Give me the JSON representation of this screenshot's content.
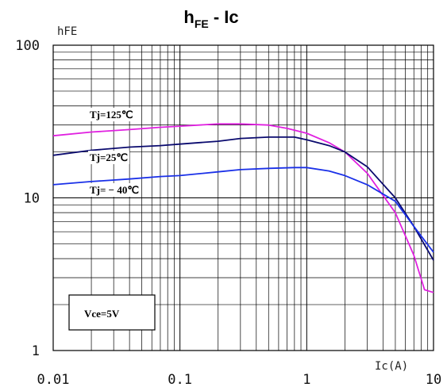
{
  "chart_data": {
    "type": "line",
    "title_main": "h",
    "title_sub": "FE",
    "title_rest": " - Ic",
    "ylabel": "hFE",
    "xlabel": "Ic(A)",
    "x_scale": "log",
    "y_scale": "log",
    "xlim": [
      0.01,
      10
    ],
    "ylim": [
      1,
      100
    ],
    "x_ticks": [
      {
        "value": 0.01,
        "label": "0.01"
      },
      {
        "value": 0.1,
        "label": "0.1"
      },
      {
        "value": 1,
        "label": "1"
      },
      {
        "value": 10,
        "label": "10"
      }
    ],
    "y_ticks": [
      {
        "value": 1,
        "label": "1"
      },
      {
        "value": 10,
        "label": "10"
      },
      {
        "value": 100,
        "label": "100"
      }
    ],
    "grid": true,
    "series": [
      {
        "name": "Tj=125℃",
        "color": "#e020e0",
        "points": [
          [
            0.01,
            25.5
          ],
          [
            0.02,
            27
          ],
          [
            0.04,
            28
          ],
          [
            0.07,
            29
          ],
          [
            0.1,
            29.5
          ],
          [
            0.2,
            30.5
          ],
          [
            0.3,
            30.5
          ],
          [
            0.5,
            30
          ],
          [
            0.7,
            28.5
          ],
          [
            1,
            26.5
          ],
          [
            1.5,
            23
          ],
          [
            2,
            20
          ],
          [
            3,
            14.5
          ],
          [
            5,
            8
          ],
          [
            7,
            4.2
          ],
          [
            8.5,
            2.5
          ],
          [
            10,
            2.4
          ]
        ]
      },
      {
        "name": "Tj=25℃",
        "color": "#0a0a6e",
        "points": [
          [
            0.01,
            19
          ],
          [
            0.02,
            20.5
          ],
          [
            0.04,
            21.5
          ],
          [
            0.07,
            22
          ],
          [
            0.1,
            22.5
          ],
          [
            0.2,
            23.5
          ],
          [
            0.3,
            24.5
          ],
          [
            0.5,
            25
          ],
          [
            0.8,
            25
          ],
          [
            1,
            24
          ],
          [
            1.5,
            22
          ],
          [
            2,
            20
          ],
          [
            3,
            16
          ],
          [
            5,
            10
          ],
          [
            7,
            6.5
          ],
          [
            10,
            3.9
          ]
        ]
      },
      {
        "name": "Tj= − 40℃",
        "color": "#1a30e8",
        "points": [
          [
            0.01,
            12.2
          ],
          [
            0.02,
            12.8
          ],
          [
            0.04,
            13.3
          ],
          [
            0.07,
            13.8
          ],
          [
            0.1,
            14
          ],
          [
            0.2,
            14.8
          ],
          [
            0.3,
            15.3
          ],
          [
            0.5,
            15.6
          ],
          [
            0.8,
            15.8
          ],
          [
            1,
            15.8
          ],
          [
            1.5,
            15
          ],
          [
            2,
            14
          ],
          [
            3,
            12.2
          ],
          [
            5,
            9.5
          ],
          [
            7,
            6.5
          ],
          [
            10,
            4.4
          ]
        ]
      }
    ],
    "note": "Vce=5V"
  }
}
